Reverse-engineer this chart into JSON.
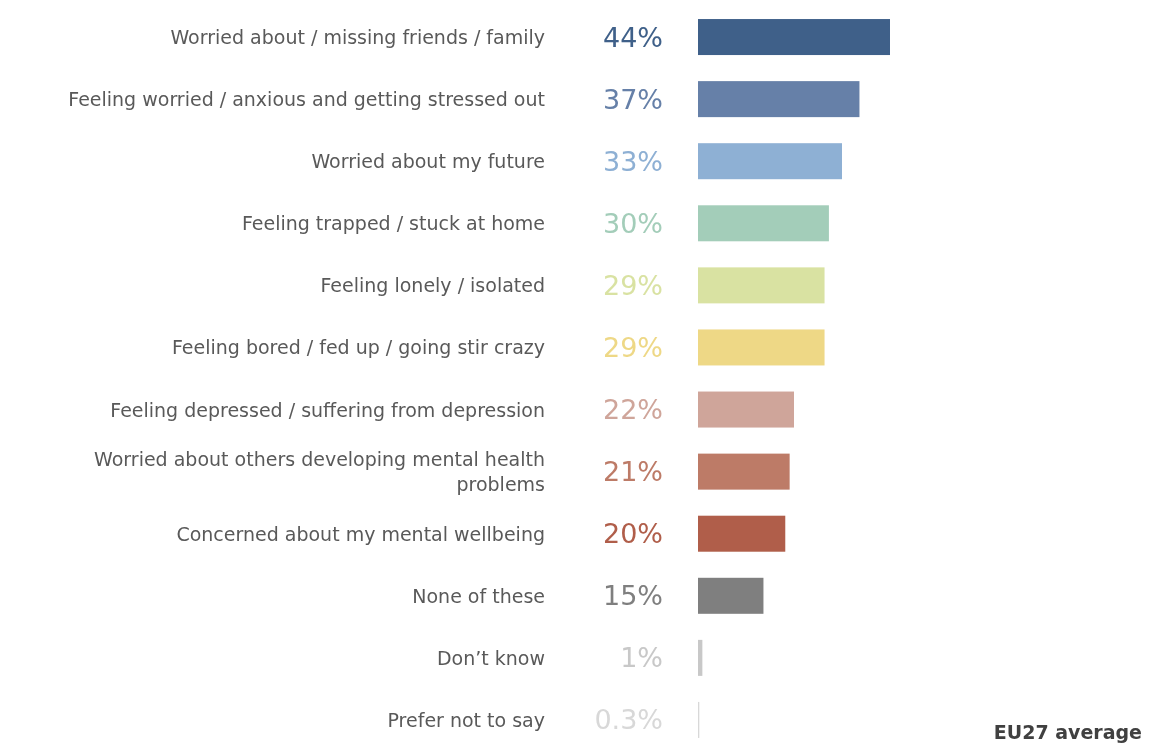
{
  "chart_data": {
    "type": "bar",
    "orientation": "horizontal",
    "categories": [
      "Worried about / missing friends / family",
      "Feeling worried / anxious and getting stressed out",
      "Worried about my future",
      "Feeling trapped / stuck at home",
      "Feeling lonely / isolated",
      "Feeling bored / fed up / going stir crazy",
      "Feeling depressed / suffering from depression",
      "Worried about others developing mental health problems",
      "Concerned about my mental wellbeing",
      "None of these",
      "Don’t know",
      "Prefer not to say"
    ],
    "values": [
      44,
      37,
      33,
      30,
      29,
      29,
      22,
      21,
      20,
      15,
      1,
      0.3
    ],
    "colors": [
      "#3f6089",
      "#6680a8",
      "#8eb0d4",
      "#a3cdb9",
      "#d9e2a2",
      "#eed886",
      "#cfa59a",
      "#bd7b67",
      "#b05e4a",
      "#7f7f7f",
      "#c8c8c8",
      "#d8d8d8"
    ],
    "value_labels": [
      "44%",
      "37%",
      "33%",
      "30%",
      "29%",
      "29%",
      "22%",
      "21%",
      "20%",
      "15%",
      "1%",
      "0.3%"
    ],
    "annotations": [
      "EU27 average"
    ]
  }
}
